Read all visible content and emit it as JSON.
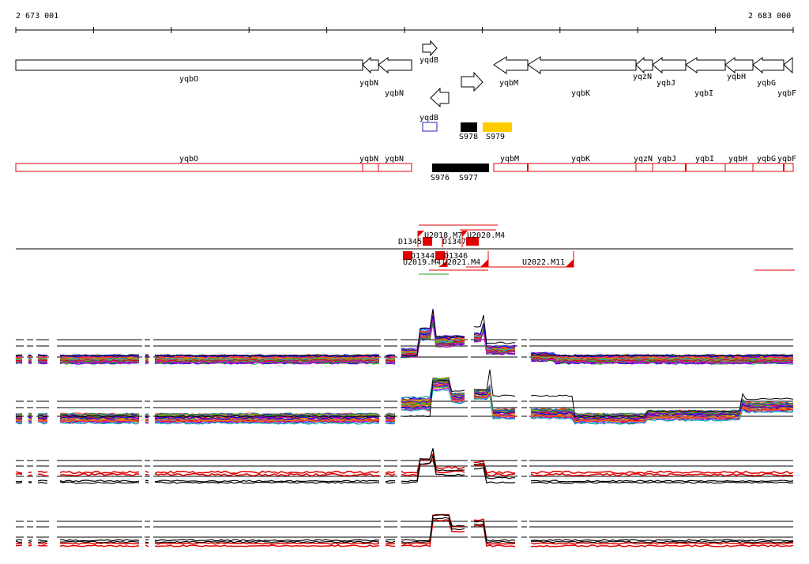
{
  "ruler": {
    "left_label": "2 673 001",
    "right_label": "2 683 000"
  },
  "genes_top": [
    {
      "label": "yqbO"
    },
    {
      "label": "yqbN"
    },
    {
      "label": "yqbN"
    },
    {
      "label": "yqdB"
    },
    {
      "label": "yqdB"
    },
    {
      "label": "yqbM"
    },
    {
      "label": "yqbK"
    },
    {
      "label": "yqzN"
    },
    {
      "label": "yqbJ"
    },
    {
      "label": "yqbI"
    },
    {
      "label": "yqbH"
    },
    {
      "label": "yqbG"
    },
    {
      "label": "yqbF"
    }
  ],
  "segments": [
    {
      "label": "S978",
      "color": "#000000"
    },
    {
      "label": "S979",
      "color": "#ffcc00"
    },
    {
      "label": "S976",
      "color": "#000000"
    },
    {
      "label": "S977",
      "color": "#000000"
    }
  ],
  "genes_red": [
    {
      "label": "yqbO"
    },
    {
      "label": "yqbN"
    },
    {
      "label": "yqbN"
    },
    {
      "label": "yqbM"
    },
    {
      "label": "yqbK"
    },
    {
      "label": "yqzN"
    },
    {
      "label": "yqbJ"
    },
    {
      "label": "yqbI"
    },
    {
      "label": "yqbH"
    },
    {
      "label": "yqbG"
    },
    {
      "label": "yqbF"
    }
  ],
  "features": [
    {
      "label": "U2018.M7"
    },
    {
      "label": "U2020.M4"
    },
    {
      "label": "D1345"
    },
    {
      "label": "D1347"
    },
    {
      "label": "D1344"
    },
    {
      "label": "D1346"
    },
    {
      "label": "U2019.M4"
    },
    {
      "label": "U2021.M4"
    },
    {
      "label": "U2022.M11"
    }
  ],
  "colors": {
    "feature": "#e00000",
    "gene_outline": "#000000",
    "red_track": "#e00000",
    "box_blue": "#2020c0"
  }
}
